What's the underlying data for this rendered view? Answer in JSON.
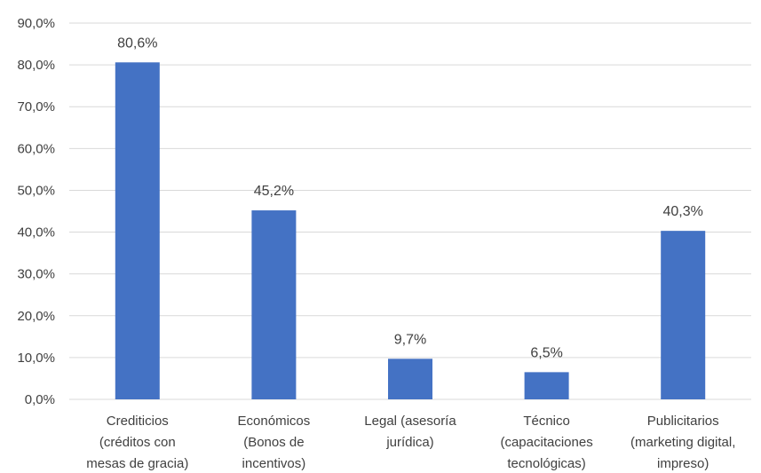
{
  "chart_data": {
    "type": "bar",
    "categories": [
      [
        "Crediticios",
        "(créditos con",
        "mesas de gracia)"
      ],
      [
        "Económicos",
        "(Bonos de",
        "incentivos)"
      ],
      [
        "Legal (asesoría",
        "jurídica)"
      ],
      [
        "Técnico",
        "(capacitaciones",
        "tecnológicas)"
      ],
      [
        "Publicitarios",
        "(marketing digital,",
        "impreso)"
      ]
    ],
    "values": [
      80.6,
      45.2,
      9.7,
      6.5,
      40.3
    ],
    "data_labels": [
      "80,6%",
      "45,2%",
      "9,7%",
      "6,5%",
      "40,3%"
    ],
    "y_ticks": [
      0,
      10,
      20,
      30,
      40,
      50,
      60,
      70,
      80,
      90
    ],
    "y_tick_labels": [
      "0,0%",
      "10,0%",
      "20,0%",
      "30,0%",
      "40,0%",
      "50,0%",
      "60,0%",
      "70,0%",
      "80,0%",
      "90,0%"
    ],
    "ylim": [
      0,
      90
    ],
    "grid": true,
    "bar_color": "#4472C4",
    "grid_color": "#D9D9D9",
    "text_color": "#404040"
  }
}
